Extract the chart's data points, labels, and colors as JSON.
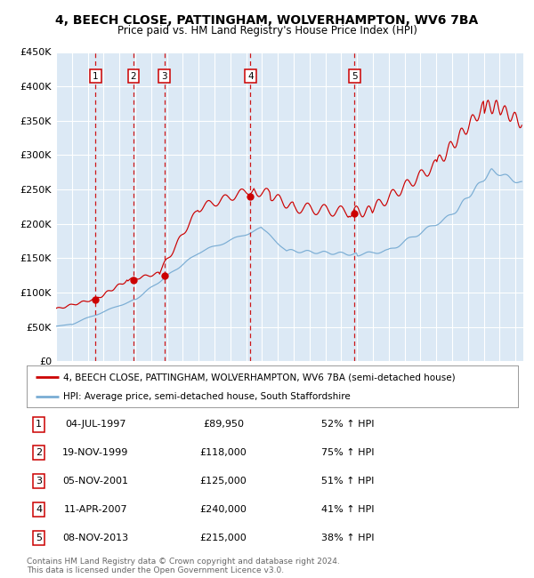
{
  "title_line1": "4, BEECH CLOSE, PATTINGHAM, WOLVERHAMPTON, WV6 7BA",
  "title_line2": "Price paid vs. HM Land Registry's House Price Index (HPI)",
  "background_color": "#dce9f5",
  "plot_bg_color": "#dce9f5",
  "red_line_color": "#cc0000",
  "blue_line_color": "#7aadd4",
  "sale_marker_color": "#cc0000",
  "vline_color": "#cc0000",
  "grid_color": "#ffffff",
  "ylim": [
    0,
    450000
  ],
  "yticks": [
    0,
    50000,
    100000,
    150000,
    200000,
    250000,
    300000,
    350000,
    400000,
    450000
  ],
  "xlim_start": 1995.0,
  "xlim_end": 2024.5,
  "sales": [
    {
      "label": "1",
      "date": "04-JUL-1997",
      "year": 1997.5,
      "price": 89950
    },
    {
      "label": "2",
      "date": "19-NOV-1999",
      "year": 1999.88,
      "price": 118000
    },
    {
      "label": "3",
      "date": "05-NOV-2001",
      "year": 2001.84,
      "price": 125000
    },
    {
      "label": "4",
      "date": "11-APR-2007",
      "year": 2007.27,
      "price": 240000
    },
    {
      "label": "5",
      "date": "08-NOV-2013",
      "year": 2013.84,
      "price": 215000
    }
  ],
  "footer_line1": "Contains HM Land Registry data © Crown copyright and database right 2024.",
  "footer_line2": "This data is licensed under the Open Government Licence v3.0.",
  "legend_label_red": "4, BEECH CLOSE, PATTINGHAM, WOLVERHAMPTON, WV6 7BA (semi-detached house)",
  "legend_label_blue": "HPI: Average price, semi-detached house, South Staffordshire",
  "table_rows": [
    [
      "1",
      "04-JUL-1997",
      "£89,950",
      "52% ↑ HPI"
    ],
    [
      "2",
      "19-NOV-1999",
      "£118,000",
      "75% ↑ HPI"
    ],
    [
      "3",
      "05-NOV-2001",
      "£125,000",
      "51% ↑ HPI"
    ],
    [
      "4",
      "11-APR-2007",
      "£240,000",
      "41% ↑ HPI"
    ],
    [
      "5",
      "08-NOV-2013",
      "£215,000",
      "38% ↑ HPI"
    ]
  ]
}
